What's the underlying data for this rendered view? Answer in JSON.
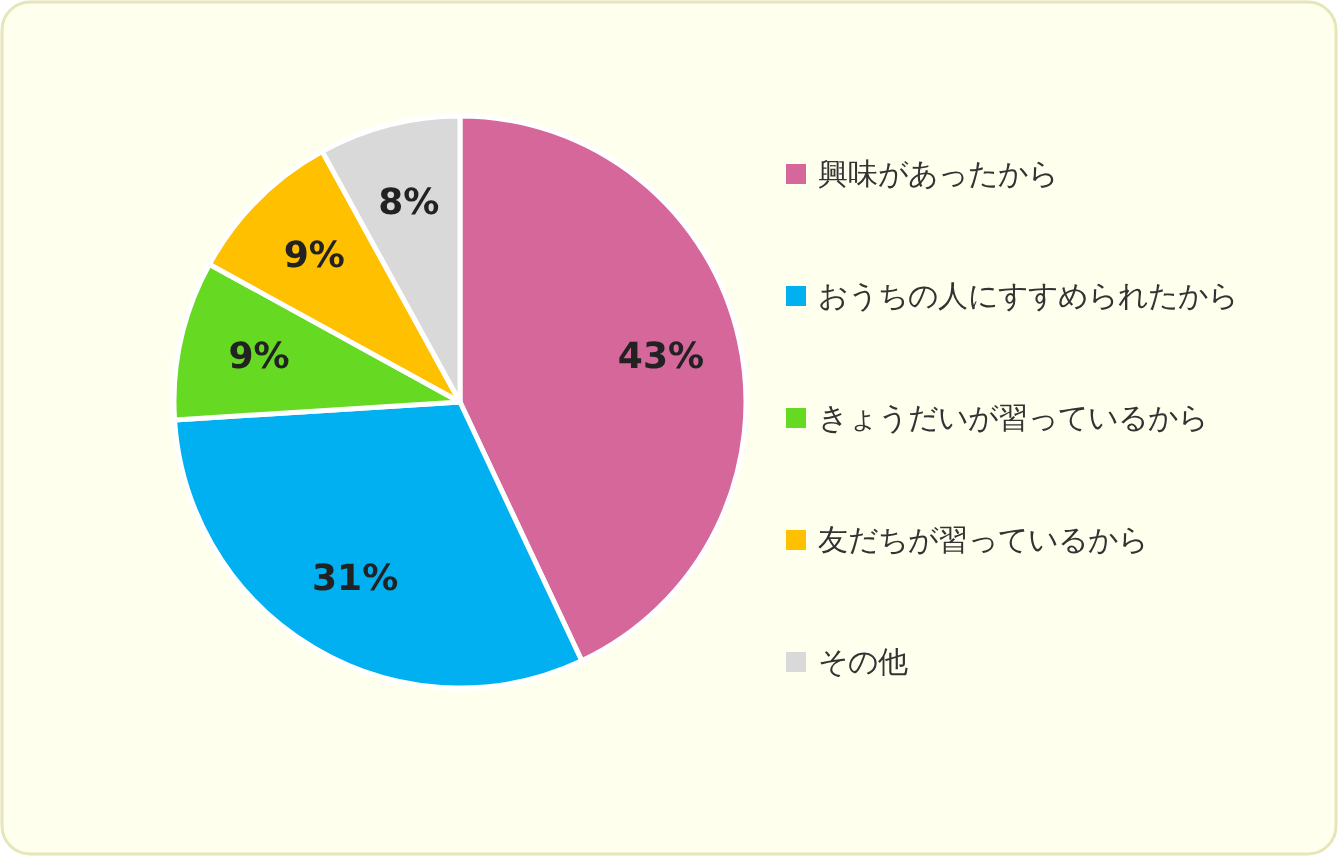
{
  "chart_data": {
    "type": "pie",
    "categories": [
      "興味があったから",
      "おうちの人にすすめられたから",
      "きょうだいが習っているから",
      "友だちが習っているから",
      "その他"
    ],
    "values": [
      43,
      31,
      9,
      9,
      8
    ],
    "colors": [
      "#d5679a",
      "#00b0f0",
      "#66d922",
      "#ffc000",
      "#d9d9d9"
    ],
    "value_labels": [
      "43%",
      "31%",
      "9%",
      "9%",
      "8%"
    ],
    "legend": "right"
  }
}
